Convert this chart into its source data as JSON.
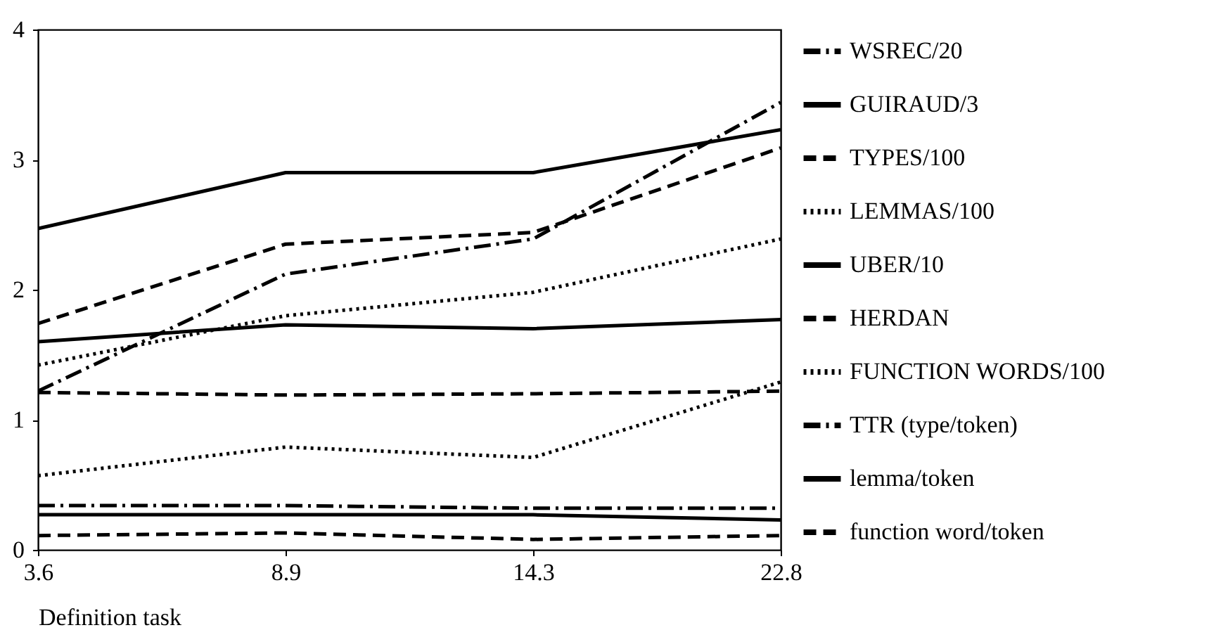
{
  "chart_data": {
    "type": "line",
    "xlabel": "Definition task",
    "categories": [
      "3.6",
      "8.9",
      "14.3",
      "22.8"
    ],
    "series": [
      {
        "name": "WSREC/20",
        "color": "#000000",
        "line_style": "dashdot",
        "values": [
          1.22,
          2.12,
          2.39,
          3.44
        ]
      },
      {
        "name": "GUIRAUD/3",
        "color": "#000000",
        "line_style": "solid",
        "values": [
          2.47,
          2.9,
          2.9,
          3.23
        ]
      },
      {
        "name": "TYPES/100",
        "color": "#000000",
        "line_style": "dashed",
        "values": [
          1.74,
          2.35,
          2.44,
          3.09
        ]
      },
      {
        "name": "LEMMAS/100",
        "color": "#000000",
        "line_style": "dotted",
        "values": [
          1.42,
          1.8,
          1.98,
          2.39
        ]
      },
      {
        "name": "UBER/10",
        "color": "#000000",
        "line_style": "solid",
        "values": [
          1.6,
          1.73,
          1.7,
          1.77
        ]
      },
      {
        "name": "HERDAN",
        "color": "#000000",
        "line_style": "dashed",
        "values": [
          1.21,
          1.19,
          1.2,
          1.22
        ]
      },
      {
        "name": "FUNCTION WORDS/100",
        "color": "#000000",
        "line_style": "dotted",
        "values": [
          0.57,
          0.79,
          0.71,
          1.29
        ]
      },
      {
        "name": "TTR (type/token)",
        "color": "#000000",
        "line_style": "dashdot",
        "values": [
          0.34,
          0.34,
          0.32,
          0.32
        ]
      },
      {
        "name": "lemma/token",
        "color": "#000000",
        "line_style": "solid",
        "values": [
          0.27,
          0.27,
          0.27,
          0.23
        ]
      },
      {
        "name": "function word/token",
        "color": "#000000",
        "line_style": "dashed",
        "values": [
          0.11,
          0.13,
          0.08,
          0.11
        ]
      }
    ],
    "ylim": [
      0,
      4
    ],
    "yticks": [
      0,
      1,
      2,
      3,
      4
    ],
    "grid": false,
    "legend": "right",
    "marker": "none"
  }
}
